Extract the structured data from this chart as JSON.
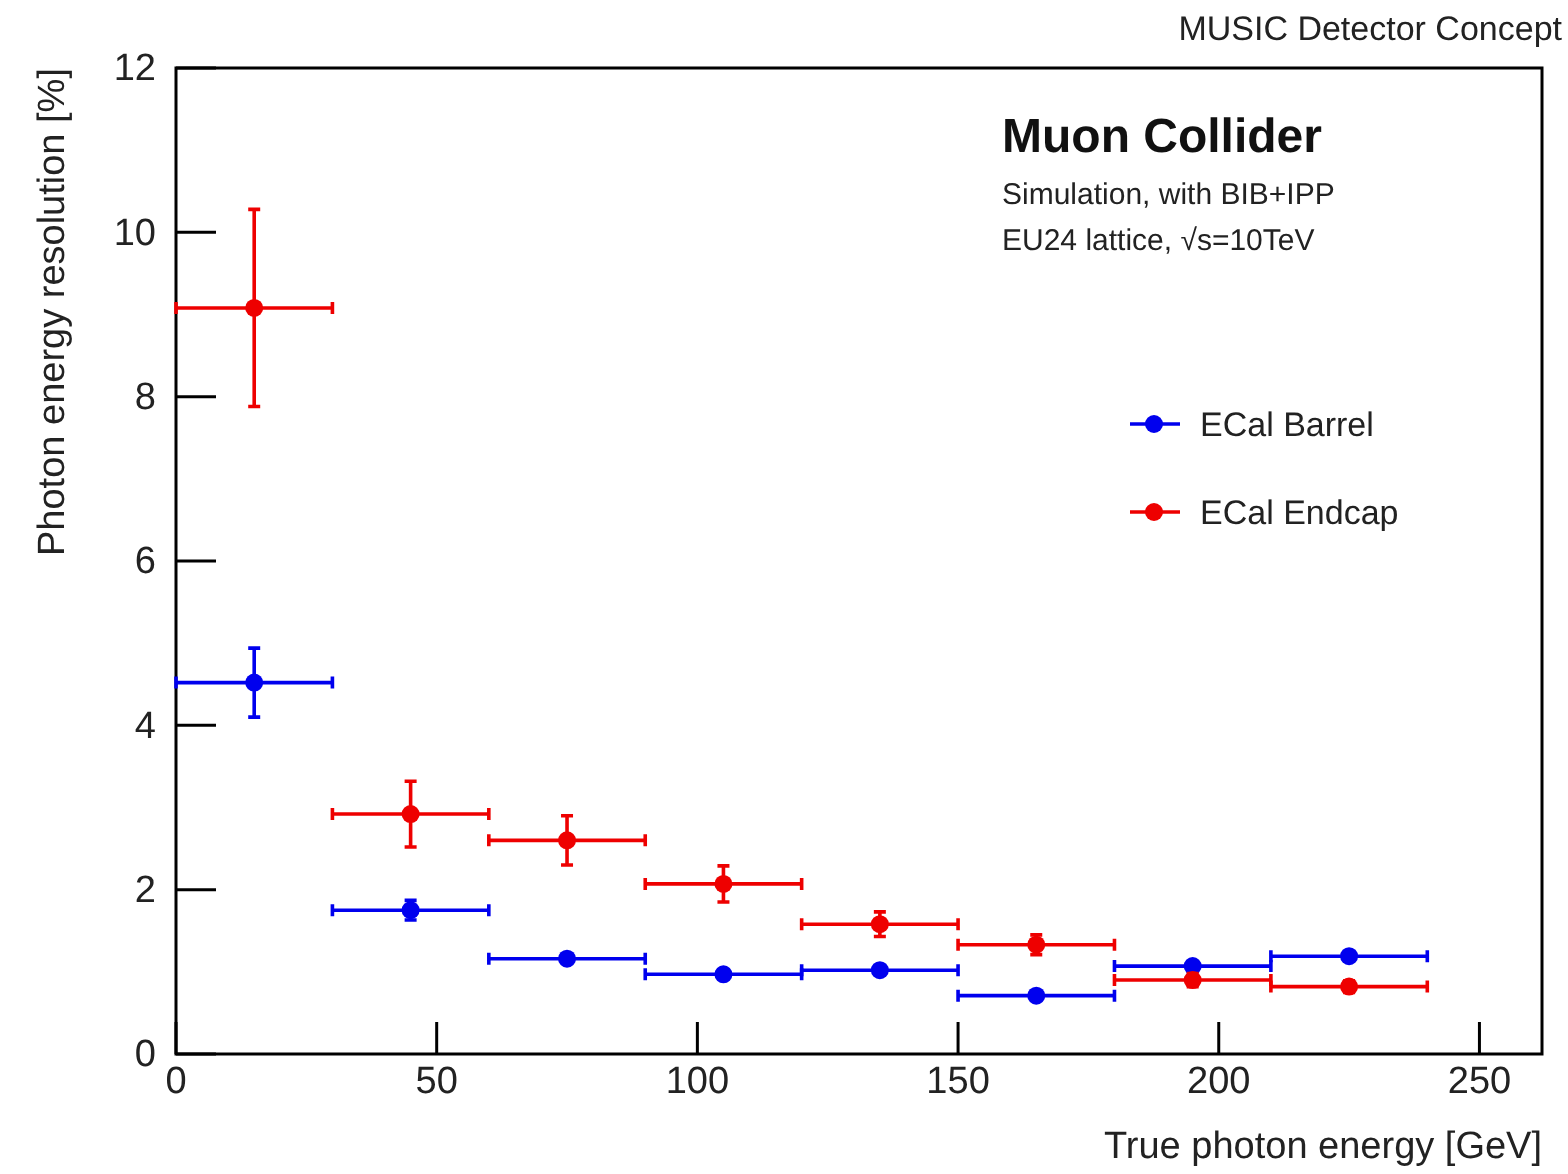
{
  "chart_data": {
    "type": "scatter",
    "title": "Muon Collider",
    "subtitle": "Simulation, with BIB+IPP",
    "annotations": [
      "EU24 lattice, √s=10TeV",
      "MUSIC Detector Concept"
    ],
    "xlabel": "True photon energy [GeV]",
    "ylabel": "Photon energy resolution [%]",
    "xlim": [
      0,
      262
    ],
    "ylim": [
      0,
      12
    ],
    "xticks": [
      0,
      50,
      100,
      150,
      200,
      250
    ],
    "yticks": [
      0,
      2,
      4,
      6,
      8,
      10,
      12
    ],
    "x": [
      15,
      45,
      75,
      105,
      135,
      165,
      195,
      225
    ],
    "grid": false,
    "legend": "right",
    "marker": "circle",
    "series": [
      {
        "name": "ECal Barrel",
        "color": "#0000ee",
        "values": [
          4.52,
          1.75,
          1.16,
          0.97,
          1.02,
          0.71,
          1.07,
          1.19
        ],
        "errors": [
          0.42,
          0.12,
          null,
          null,
          null,
          null,
          null,
          null
        ],
        "xerrors": [
          15,
          15,
          15,
          15,
          15,
          15,
          15,
          15
        ]
      },
      {
        "name": "ECal Endcap",
        "color": "#ee0000",
        "values": [
          9.08,
          2.92,
          2.6,
          2.07,
          1.58,
          1.33,
          0.9,
          0.82
        ],
        "errors": [
          1.2,
          0.4,
          0.3,
          0.22,
          0.15,
          0.12,
          0.08,
          0.07
        ],
        "xerrors": [
          15,
          15,
          15,
          15,
          15,
          15,
          15,
          15
        ]
      }
    ]
  }
}
